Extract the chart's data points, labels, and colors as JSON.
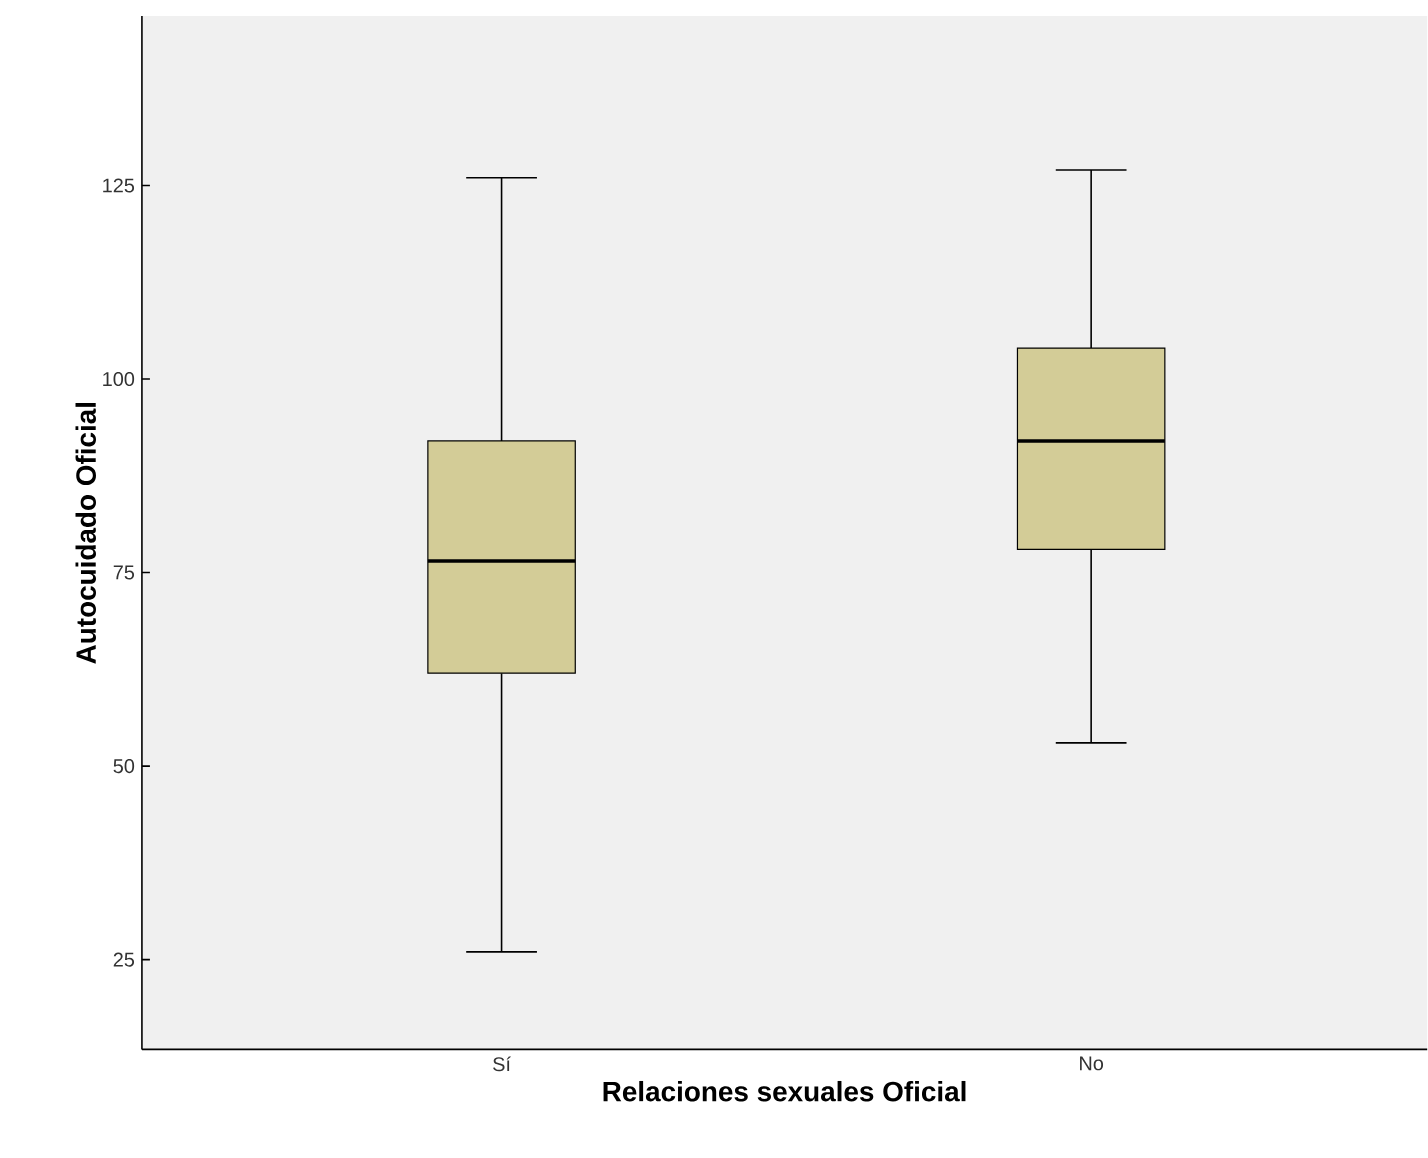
{
  "chart_data": {
    "type": "box",
    "xlabel": "Relaciones sexuales Oficial",
    "ylabel": "Autocuidado Oficial",
    "categories": [
      "Sí",
      "No"
    ],
    "color": "#d3cc97",
    "boxes": [
      {
        "low": 26,
        "q1": 62,
        "median": 76.5,
        "q3": 92,
        "high": 126
      },
      {
        "low": 53,
        "q1": 78,
        "median": 92,
        "q3": 104,
        "high": 127
      }
    ],
    "ylim": [
      13.4,
      146.9
    ],
    "yticks": [
      25,
      50,
      75,
      100,
      125
    ]
  }
}
